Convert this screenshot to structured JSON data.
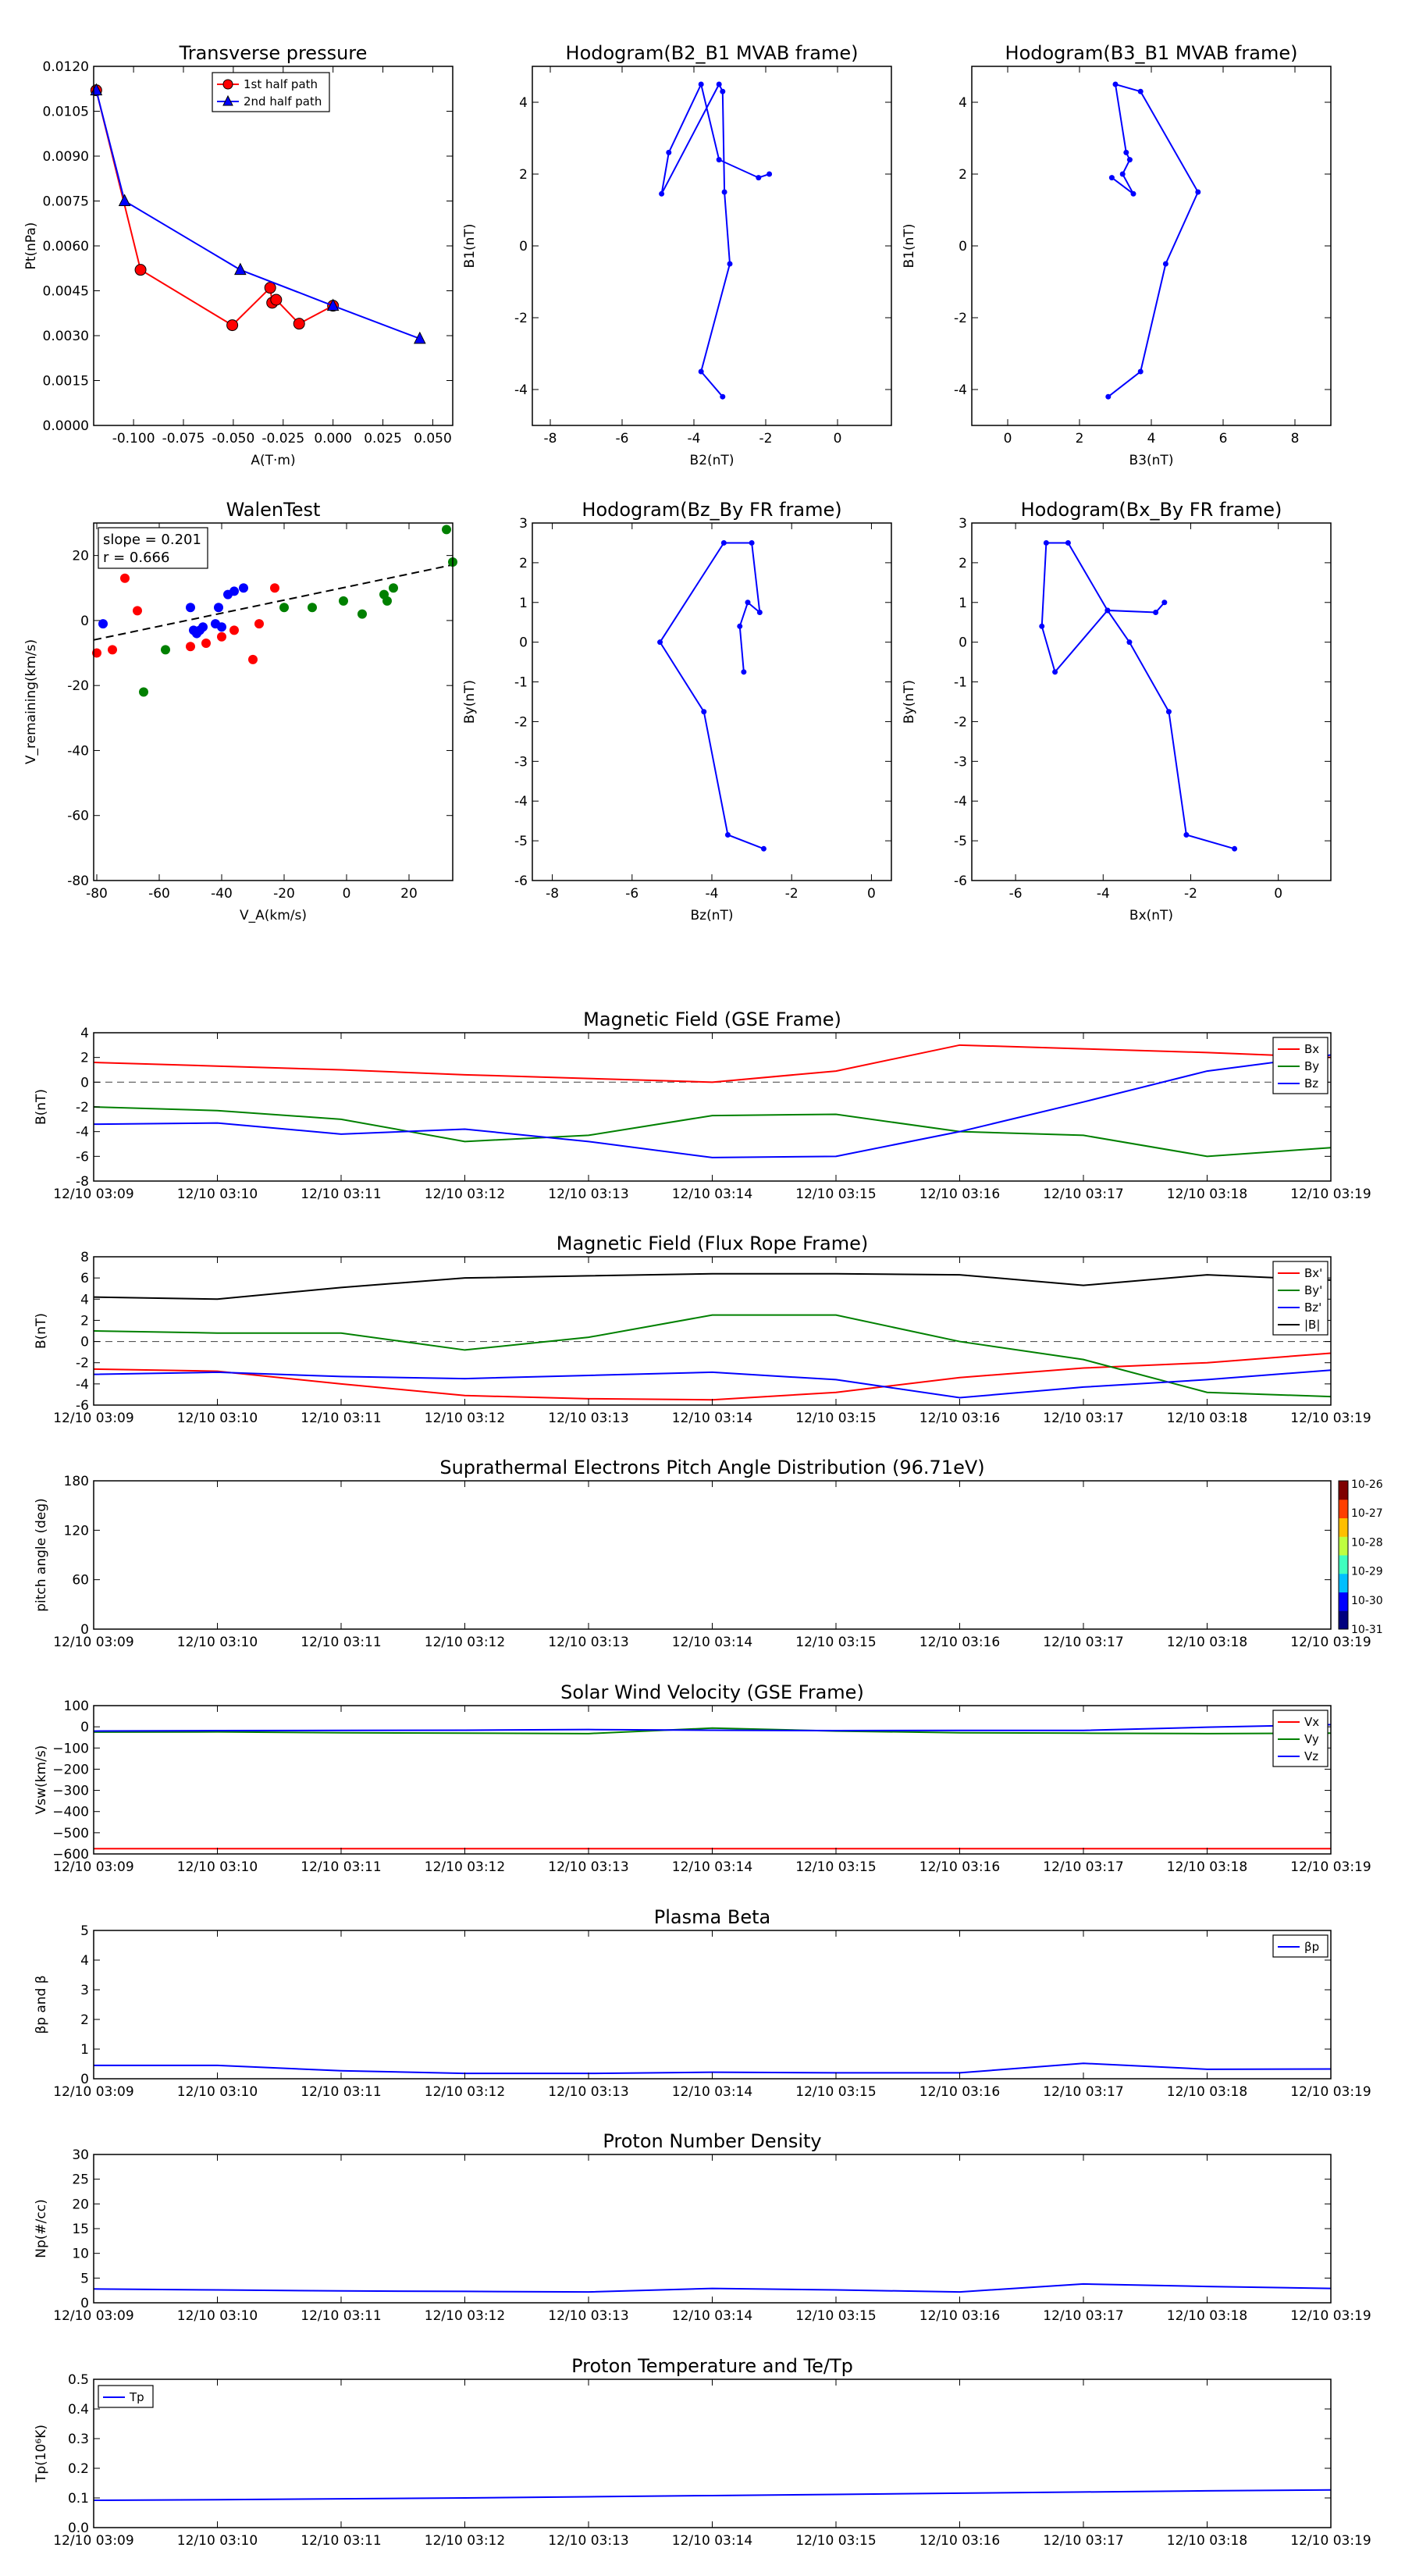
{
  "colors": {
    "red": "#ff0000",
    "green": "#008000",
    "blue": "#0000ff",
    "black": "#000000"
  },
  "timeline_ticks": [
    "12/10 03:09",
    "12/10 03:10",
    "12/10 03:11",
    "12/10 03:12",
    "12/10 03:13",
    "12/10 03:14",
    "12/10 03:15",
    "12/10 03:16",
    "12/10 03:17",
    "12/10 03:18",
    "12/10 03:19"
  ],
  "chart_data": [
    {
      "id": "transverse-pressure",
      "type": "line",
      "title": "Transverse pressure",
      "xlabel": "A(T·m)",
      "ylabel": "Pt(nPa)",
      "xlim": [
        -0.12,
        0.06
      ],
      "ylim": [
        0,
        0.012
      ],
      "xticks": [
        "-0.100",
        "-0.075",
        "-0.050",
        "-0.025",
        "0.000",
        "0.025",
        "0.050"
      ],
      "xtick_values": [
        -0.1,
        -0.075,
        -0.05,
        -0.025,
        0,
        0.025,
        0.05
      ],
      "yticks": [
        "0.0000",
        "0.0015",
        "0.0030",
        "0.0045",
        "0.0060",
        "0.0075",
        "0.0090",
        "0.0105",
        "0.0120"
      ],
      "ytick_values": [
        0,
        0.0015,
        0.003,
        0.0045,
        0.006,
        0.0075,
        0.009,
        0.0105,
        0.012
      ],
      "legend": {
        "placement": "top-center"
      },
      "series": [
        {
          "name": "1st half path",
          "color": "red",
          "marker": "circle",
          "x": [
            -0.1187,
            -0.0965,
            -0.0505,
            -0.0315,
            -0.0305,
            -0.0285,
            -0.017,
            0.0
          ],
          "y": [
            0.0112,
            0.0052,
            0.00335,
            0.0046,
            0.0041,
            0.0042,
            0.0034,
            0.004
          ]
        },
        {
          "name": "2nd half path",
          "color": "blue",
          "marker": "triangle",
          "x": [
            -0.1187,
            -0.1045,
            -0.0465,
            0.0,
            0.0435
          ],
          "y": [
            0.0112,
            0.0075,
            0.0052,
            0.004,
            0.0029
          ]
        }
      ]
    },
    {
      "id": "hodogram-b2-b1",
      "type": "line",
      "title": "Hodogram(B2_B1 MVAB frame)",
      "xlabel": "B2(nT)",
      "ylabel": "B1(nT)",
      "xlim": [
        -8.5,
        1.5
      ],
      "ylim": [
        -5,
        5
      ],
      "xticks": [
        "-8",
        "-6",
        "-4",
        "-2",
        "0"
      ],
      "xtick_values": [
        -8,
        -6,
        -4,
        -2,
        0
      ],
      "yticks": [
        "-4",
        "-2",
        "0",
        "2",
        "4"
      ],
      "ytick_values": [
        -4,
        -2,
        0,
        2,
        4
      ],
      "series": [
        {
          "color": "blue",
          "marker": "dot",
          "x": [
            -3.2,
            -3.8,
            -3.0,
            -3.15,
            -3.2,
            -3.3,
            -4.9,
            -4.7,
            -3.8,
            -3.3,
            -2.2,
            -1.9
          ],
          "y": [
            -4.2,
            -3.5,
            -0.5,
            1.5,
            4.3,
            4.5,
            1.45,
            2.6,
            4.5,
            2.4,
            1.9,
            2.0
          ]
        }
      ]
    },
    {
      "id": "hodogram-b3-b1",
      "type": "line",
      "title": "Hodogram(B3_B1 MVAB frame)",
      "xlabel": "B3(nT)",
      "ylabel": "B1(nT)",
      "xlim": [
        -1,
        9
      ],
      "ylim": [
        -5,
        5
      ],
      "xticks": [
        "0",
        "2",
        "4",
        "6",
        "8"
      ],
      "xtick_values": [
        0,
        2,
        4,
        6,
        8
      ],
      "yticks": [
        "-4",
        "-2",
        "0",
        "2",
        "4"
      ],
      "ytick_values": [
        -4,
        -2,
        0,
        2,
        4
      ],
      "series": [
        {
          "color": "blue",
          "marker": "dot",
          "x": [
            2.8,
            3.7,
            4.4,
            5.3,
            3.7,
            3.0,
            3.3,
            3.4,
            3.2,
            3.5,
            2.9
          ],
          "y": [
            -4.2,
            -3.5,
            -0.5,
            1.5,
            4.3,
            4.5,
            2.6,
            2.4,
            2.0,
            1.45,
            1.9
          ]
        }
      ]
    },
    {
      "id": "walen-test",
      "type": "scatter",
      "title": "WalenTest",
      "xlabel": "V_A(km/s)",
      "ylabel": "V_remaining(km/s)",
      "xlim": [
        -81,
        34
      ],
      "ylim": [
        -80,
        30
      ],
      "xticks": [
        "-80",
        "-60",
        "-40",
        "-20",
        "0",
        "20"
      ],
      "xtick_values": [
        -80,
        -60,
        -40,
        -20,
        0,
        20
      ],
      "yticks": [
        "-80",
        "-60",
        "-40",
        "-20",
        "0",
        "20"
      ],
      "ytick_values": [
        -80,
        -60,
        -40,
        -20,
        0,
        20
      ],
      "annotation": {
        "slope_text": "slope = 0.201",
        "r_text": "r = 0.666"
      },
      "fit_line": {
        "slope": 0.201,
        "intercept": 10.3,
        "style": "dashed",
        "color": "black"
      },
      "series": [
        {
          "color": "red",
          "x": [
            -80,
            -75,
            -71,
            -67,
            -50,
            -45,
            -40,
            -36,
            -30,
            -28,
            -23
          ],
          "y": [
            -10,
            -9,
            13,
            3,
            -8,
            -7,
            -5,
            -3,
            -12,
            -1,
            10
          ]
        },
        {
          "color": "blue",
          "x": [
            -78,
            -50,
            -49,
            -48,
            -47,
            -46,
            -42,
            -41,
            -40,
            -38,
            -36,
            -33
          ],
          "y": [
            -1,
            4,
            -3,
            -4,
            -3,
            -2,
            -1,
            4,
            -2,
            8,
            9,
            10
          ]
        },
        {
          "color": "green",
          "x": [
            -65,
            -58,
            -20,
            -11,
            -1,
            5,
            12,
            13,
            15,
            32,
            34
          ],
          "y": [
            -22,
            -9,
            4,
            4,
            6,
            2,
            8,
            6,
            10,
            28,
            18
          ]
        }
      ]
    },
    {
      "id": "hodogram-bz-by",
      "type": "line",
      "title": "Hodogram(Bz_By FR frame)",
      "xlabel": "Bz(nT)",
      "ylabel": "By(nT)",
      "xlim": [
        -8.5,
        0.5
      ],
      "ylim": [
        -6,
        3
      ],
      "xticks": [
        "-8",
        "-6",
        "-4",
        "-2",
        "0"
      ],
      "xtick_values": [
        -8,
        -6,
        -4,
        -2,
        0
      ],
      "yticks": [
        "-6",
        "-5",
        "-4",
        "-3",
        "-2",
        "-1",
        "0",
        "1",
        "2",
        "3"
      ],
      "ytick_values": [
        -6,
        -5,
        -4,
        -3,
        -2,
        -1,
        0,
        1,
        2,
        3
      ],
      "series": [
        {
          "color": "blue",
          "marker": "dot",
          "x": [
            -2.7,
            -3.6,
            -4.2,
            -5.3,
            -3.7,
            -3.0,
            -2.8,
            -3.1,
            -3.3,
            -3.2
          ],
          "y": [
            -5.2,
            -4.85,
            -1.75,
            0.0,
            2.5,
            2.5,
            0.75,
            1.0,
            0.4,
            -0.75
          ]
        }
      ]
    },
    {
      "id": "hodogram-bx-by",
      "type": "line",
      "title": "Hodogram(Bx_By FR frame)",
      "xlabel": "Bx(nT)",
      "ylabel": "By(nT)",
      "xlim": [
        -7,
        1.2
      ],
      "ylim": [
        -6,
        3
      ],
      "xticks": [
        "-6",
        "-4",
        "-2",
        "0"
      ],
      "xtick_values": [
        -6,
        -4,
        -2,
        0
      ],
      "yticks": [
        "-6",
        "-5",
        "-4",
        "-3",
        "-2",
        "-1",
        "0",
        "1",
        "2",
        "3"
      ],
      "ytick_values": [
        -6,
        -5,
        -4,
        -3,
        -2,
        -1,
        0,
        1,
        2,
        3
      ],
      "series": [
        {
          "color": "blue",
          "marker": "dot",
          "x": [
            -1.0,
            -2.1,
            -2.5,
            -3.4,
            -3.9,
            -4.8,
            -5.3,
            -5.4,
            -5.1,
            -3.9,
            -2.8,
            -2.6
          ],
          "y": [
            -5.2,
            -4.85,
            -1.75,
            0.0,
            0.8,
            2.5,
            2.5,
            0.4,
            -0.75,
            0.8,
            0.75,
            1.0
          ]
        }
      ]
    },
    {
      "id": "magnetic-field-gse",
      "type": "line",
      "timeseries": true,
      "title": "Magnetic Field (GSE Frame)",
      "ylabel": "B(nT)",
      "ylim": [
        -8,
        4
      ],
      "yticks": [
        "-8",
        "-6",
        "-4",
        "-2",
        "0",
        "2",
        "4"
      ],
      "ytick_values": [
        -8,
        -6,
        -4,
        -2,
        0,
        2,
        4
      ],
      "zero_line": true,
      "legend": {
        "placement": "top-right"
      },
      "x": [
        0,
        1,
        2,
        3,
        4,
        5,
        6,
        7,
        8,
        9,
        10
      ],
      "series": [
        {
          "name": "Bx",
          "color": "red",
          "values": [
            1.6,
            1.3,
            1.0,
            0.6,
            0.3,
            0.0,
            0.9,
            3.0,
            2.7,
            2.4,
            2.0
          ]
        },
        {
          "name": "By",
          "color": "green",
          "values": [
            -2.0,
            -2.3,
            -3.0,
            -4.8,
            -4.3,
            -2.7,
            -2.6,
            -4.0,
            -4.3,
            -6.0,
            -5.3
          ]
        },
        {
          "name": "Bz",
          "color": "blue",
          "values": [
            -3.4,
            -3.3,
            -4.2,
            -3.8,
            -4.8,
            -6.1,
            -6.0,
            -4.0,
            -1.6,
            0.9,
            2.2
          ]
        }
      ]
    },
    {
      "id": "magnetic-field-flux-rope",
      "type": "line",
      "timeseries": true,
      "title": "Magnetic Field (Flux Rope Frame)",
      "ylabel": "B(nT)",
      "ylim": [
        -6,
        8
      ],
      "yticks": [
        "-6",
        "-4",
        "-2",
        "0",
        "2",
        "4",
        "6",
        "8"
      ],
      "ytick_values": [
        -6,
        -4,
        -2,
        0,
        2,
        4,
        6,
        8
      ],
      "zero_line": true,
      "legend": {
        "placement": "top-right"
      },
      "x": [
        0,
        1,
        2,
        3,
        4,
        5,
        6,
        7,
        8,
        9,
        10
      ],
      "series": [
        {
          "name": "Bx'",
          "color": "red",
          "values": [
            -2.6,
            -2.8,
            -4.0,
            -5.1,
            -5.4,
            -5.5,
            -4.8,
            -3.4,
            -2.5,
            -2.0,
            -1.1
          ]
        },
        {
          "name": "By'",
          "color": "green",
          "values": [
            1.0,
            0.8,
            0.8,
            -0.8,
            0.4,
            2.5,
            2.5,
            0.0,
            -1.7,
            -4.8,
            -5.2
          ]
        },
        {
          "name": "Bz'",
          "color": "blue",
          "values": [
            -3.1,
            -2.9,
            -3.3,
            -3.5,
            -3.2,
            -2.9,
            -3.6,
            -5.3,
            -4.3,
            -3.6,
            -2.7
          ]
        },
        {
          "name": "|B|",
          "color": "black",
          "values": [
            4.2,
            4.0,
            5.1,
            6.0,
            6.2,
            6.4,
            6.4,
            6.3,
            5.3,
            6.3,
            5.8
          ]
        }
      ]
    },
    {
      "id": "pitch-angle",
      "type": "heatmap",
      "timeseries": true,
      "title": "Suprathermal Electrons Pitch Angle Distribution (96.71eV)",
      "ylabel": "pitch angle (deg)",
      "ylim": [
        0,
        180
      ],
      "yticks": [
        "0",
        "60",
        "120",
        "180"
      ],
      "ytick_values": [
        0,
        60,
        120,
        180
      ],
      "colorbar": {
        "labels": [
          "10-26",
          "10-27",
          "10-28",
          "10-29",
          "10-30",
          "10-31"
        ]
      },
      "values": []
    },
    {
      "id": "solar-wind-velocity",
      "type": "line",
      "timeseries": true,
      "title": "Solar Wind Velocity (GSE Frame)",
      "ylabel": "Vsw(km/s)",
      "ylim": [
        -600,
        100
      ],
      "yticks": [
        "−600",
        "−500",
        "−400",
        "−300",
        "−200",
        "−100",
        "0",
        "100"
      ],
      "ytick_values": [
        -600,
        -500,
        -400,
        -300,
        -200,
        -100,
        0,
        100
      ],
      "legend": {
        "placement": "top-right"
      },
      "x": [
        0,
        1,
        2,
        3,
        4,
        5,
        6,
        7,
        8,
        9,
        10
      ],
      "series": [
        {
          "name": "Vx",
          "color": "red",
          "values": [
            -575,
            -575,
            -575,
            -575,
            -575,
            -575,
            -575,
            -575,
            -575,
            -575,
            -575
          ]
        },
        {
          "name": "Vy",
          "color": "green",
          "values": [
            -25,
            -24,
            -28,
            -30,
            -32,
            -6,
            -20,
            -28,
            -30,
            -32,
            -30
          ]
        },
        {
          "name": "Vz",
          "color": "blue",
          "values": [
            -20,
            -18,
            -17,
            -16,
            -13,
            -16,
            -18,
            -17,
            -17,
            -2,
            10
          ]
        }
      ]
    },
    {
      "id": "plasma-beta",
      "type": "line",
      "timeseries": true,
      "title": "Plasma Beta",
      "ylabel": "βp and β",
      "ylim": [
        0,
        5
      ],
      "yticks": [
        "0",
        "1",
        "2",
        "3",
        "4",
        "5"
      ],
      "ytick_values": [
        0,
        1,
        2,
        3,
        4,
        5
      ],
      "legend": {
        "placement": "top-right"
      },
      "x": [
        0,
        1,
        2,
        3,
        4,
        5,
        6,
        7,
        8,
        9,
        10
      ],
      "series": [
        {
          "name": "βp",
          "color": "blue",
          "values": [
            0.45,
            0.45,
            0.27,
            0.18,
            0.18,
            0.22,
            0.2,
            0.2,
            0.52,
            0.32,
            0.33
          ]
        }
      ]
    },
    {
      "id": "proton-density",
      "type": "line",
      "timeseries": true,
      "title": "Proton Number Density",
      "ylabel": "Np(#/cc)",
      "ylim": [
        0,
        30
      ],
      "yticks": [
        "0",
        "5",
        "10",
        "15",
        "20",
        "25",
        "30"
      ],
      "ytick_values": [
        0,
        5,
        10,
        15,
        20,
        25,
        30
      ],
      "x": [
        0,
        1,
        2,
        3,
        4,
        5,
        6,
        7,
        8,
        9,
        10
      ],
      "series": [
        {
          "color": "blue",
          "values": [
            2.8,
            2.6,
            2.4,
            2.3,
            2.2,
            2.9,
            2.6,
            2.2,
            3.8,
            3.3,
            2.9
          ]
        }
      ]
    },
    {
      "id": "proton-temperature",
      "type": "line",
      "timeseries": true,
      "title": "Proton Temperature and Te/Tp",
      "ylabel": "Tp(10⁶K)",
      "ylim": [
        0,
        0.5
      ],
      "yticks": [
        "0.0",
        "0.1",
        "0.2",
        "0.3",
        "0.4",
        "0.5"
      ],
      "ytick_values": [
        0,
        0.1,
        0.2,
        0.3,
        0.4,
        0.5
      ],
      "legend": {
        "placement": "top-left"
      },
      "x": [
        0,
        1,
        2,
        3,
        4,
        5,
        6,
        7,
        8,
        9,
        10
      ],
      "series": [
        {
          "name": "Tp",
          "color": "blue",
          "values": [
            0.092,
            0.094,
            0.097,
            0.1,
            0.104,
            0.108,
            0.112,
            0.116,
            0.12,
            0.124,
            0.127
          ]
        }
      ]
    }
  ]
}
